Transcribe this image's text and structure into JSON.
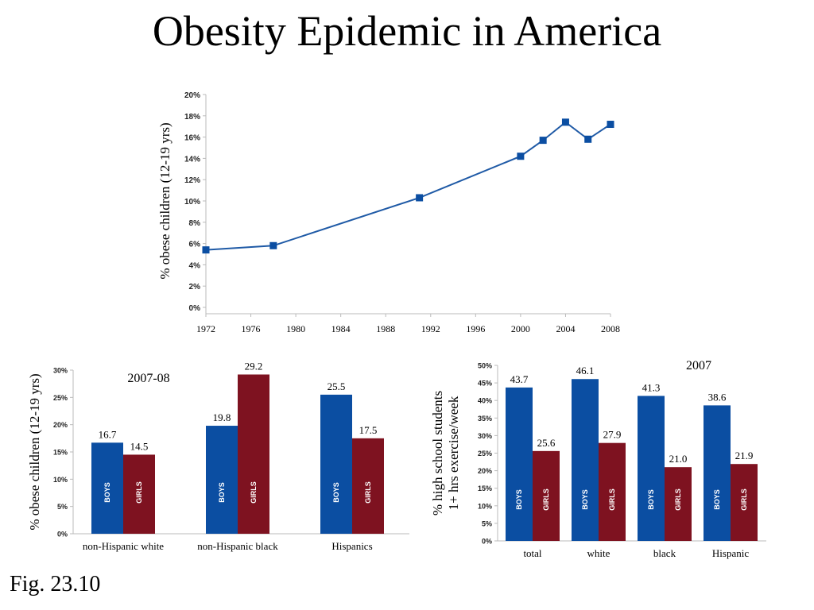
{
  "slide": {
    "title": "Obesity Epidemic in America",
    "caption": "Fig. 23.10"
  },
  "colors": {
    "line": "#1f5aa6",
    "boys": "#0b4ea2",
    "girls": "#7e1220"
  },
  "chart_data": [
    {
      "type": "line",
      "ylabel": "% obese children (12-19 yrs)",
      "xlabel": "",
      "x_ticks": [
        1972,
        1976,
        1980,
        1984,
        1988,
        1992,
        1996,
        2000,
        2004,
        2008
      ],
      "y_ticks": [
        "0%",
        "2%",
        "4%",
        "6%",
        "8%",
        "10%",
        "12%",
        "14%",
        "16%",
        "18%",
        "20%"
      ],
      "xlim": [
        1972,
        2008
      ],
      "ylim": [
        0,
        20
      ],
      "series": [
        {
          "x": [
            1972,
            1978,
            1991,
            2000,
            2002,
            2004,
            2006,
            2008
          ],
          "y": [
            5.4,
            5.8,
            10.3,
            14.2,
            15.7,
            17.4,
            15.8,
            17.2
          ]
        }
      ]
    },
    {
      "type": "bar",
      "annotation": "2007-08",
      "ylabel": "% obese children (12-19 yrs)",
      "ylim": [
        0,
        30
      ],
      "y_ticks": [
        "0%",
        "5%",
        "10%",
        "15%",
        "20%",
        "25%",
        "30%"
      ],
      "categories": [
        "non-Hispanic white",
        "non-Hispanic black",
        "Hispanics"
      ],
      "series": [
        {
          "name": "BOYS",
          "values": [
            16.7,
            19.8,
            25.5
          ],
          "labels": [
            "16.7",
            "19.8",
            "25.5"
          ]
        },
        {
          "name": "GIRLS",
          "values": [
            14.5,
            29.2,
            17.5
          ],
          "labels": [
            "14.5",
            "29.2",
            "17.5"
          ]
        }
      ]
    },
    {
      "type": "bar",
      "annotation": "2007",
      "ylabel": "% high school students",
      "ylabel2": "1+ hrs exercise/week",
      "ylim": [
        0,
        50
      ],
      "y_ticks": [
        "0%",
        "5%",
        "10%",
        "15%",
        "20%",
        "25%",
        "30%",
        "35%",
        "40%",
        "45%",
        "50%"
      ],
      "categories": [
        "total",
        "white",
        "black",
        "Hispanic"
      ],
      "series": [
        {
          "name": "BOYS",
          "values": [
            43.7,
            46.1,
            41.3,
            38.6
          ],
          "labels": [
            "43.7",
            "46.1",
            "41.3",
            "38.6"
          ]
        },
        {
          "name": "GIRLS",
          "values": [
            25.6,
            27.9,
            21.0,
            21.9
          ],
          "labels": [
            "25.6",
            "27.9",
            "21.0",
            "21.9"
          ]
        }
      ]
    }
  ]
}
